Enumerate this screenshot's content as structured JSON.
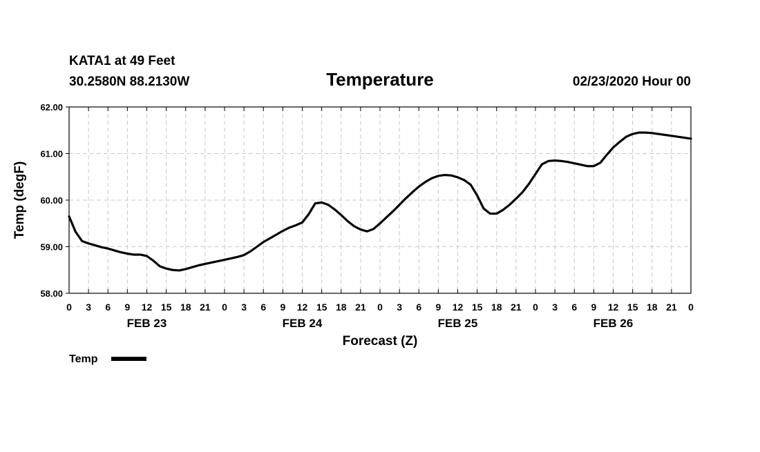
{
  "header": {
    "station": "KATA1 at 49 Feet",
    "location": "30.2580N 88.2130W",
    "datetime": "02/23/2020 Hour 00"
  },
  "chart_data": {
    "type": "line",
    "title": "Temperature",
    "xlabel": "Forecast (Z)",
    "ylabel": "Temp (degF)",
    "ylim": [
      58.0,
      62.0
    ],
    "yticks": [
      "58.00",
      "59.00",
      "60.00",
      "61.00",
      "62.00"
    ],
    "xlim": [
      0,
      96
    ],
    "x_tick_labels": [
      "0",
      "3",
      "6",
      "9",
      "12",
      "15",
      "18",
      "21",
      "0",
      "3",
      "6",
      "9",
      "12",
      "15",
      "18",
      "21",
      "0",
      "3",
      "6",
      "9",
      "12",
      "15",
      "18",
      "21",
      "0",
      "3",
      "6",
      "9",
      "12",
      "15",
      "18",
      "21",
      "0"
    ],
    "day_labels": [
      {
        "label": "FEB 23",
        "hour": 12
      },
      {
        "label": "FEB 24",
        "hour": 36
      },
      {
        "label": "FEB 25",
        "hour": 60
      },
      {
        "label": "FEB 26",
        "hour": 84
      }
    ],
    "grid": true,
    "series": [
      {
        "name": "Temp",
        "x": [
          0,
          1,
          2,
          3,
          4,
          5,
          6,
          7,
          8,
          9,
          10,
          11,
          12,
          13,
          14,
          15,
          16,
          17,
          18,
          19,
          20,
          21,
          22,
          23,
          24,
          25,
          26,
          27,
          28,
          29,
          30,
          31,
          32,
          33,
          34,
          35,
          36,
          37,
          38,
          39,
          40,
          41,
          42,
          43,
          44,
          45,
          46,
          47,
          48,
          49,
          50,
          51,
          52,
          53,
          54,
          55,
          56,
          57,
          58,
          59,
          60,
          61,
          62,
          63,
          64,
          65,
          66,
          67,
          68,
          69,
          70,
          71,
          72,
          73,
          74,
          75,
          76,
          77,
          78,
          79,
          80,
          81,
          82,
          83,
          84,
          85,
          86,
          87,
          88,
          89,
          90,
          91,
          92,
          93,
          94,
          95,
          96
        ],
        "values": [
          59.65,
          59.32,
          59.12,
          59.07,
          59.03,
          58.99,
          58.96,
          58.92,
          58.88,
          58.85,
          58.83,
          58.83,
          58.8,
          58.7,
          58.58,
          58.53,
          58.5,
          58.49,
          58.52,
          58.56,
          58.6,
          58.63,
          58.66,
          58.69,
          58.72,
          58.75,
          58.78,
          58.82,
          58.9,
          59.0,
          59.1,
          59.18,
          59.26,
          59.34,
          59.41,
          59.46,
          59.52,
          59.7,
          59.93,
          59.95,
          59.9,
          59.8,
          59.68,
          59.55,
          59.44,
          59.37,
          59.33,
          59.38,
          59.5,
          59.63,
          59.76,
          59.9,
          60.04,
          60.17,
          60.29,
          60.39,
          60.47,
          60.52,
          60.54,
          60.53,
          60.49,
          60.43,
          60.33,
          60.1,
          59.82,
          59.71,
          59.71,
          59.79,
          59.9,
          60.03,
          60.17,
          60.35,
          60.56,
          60.77,
          60.84,
          60.85,
          60.84,
          60.82,
          60.79,
          60.76,
          60.73,
          60.73,
          60.8,
          60.97,
          61.13,
          61.25,
          61.36,
          61.42,
          61.45,
          61.45,
          61.44,
          61.42,
          61.4,
          61.38,
          61.36,
          61.34,
          61.32
        ]
      }
    ],
    "legend": {
      "label": "Temp",
      "placement": "bottom-left"
    }
  }
}
